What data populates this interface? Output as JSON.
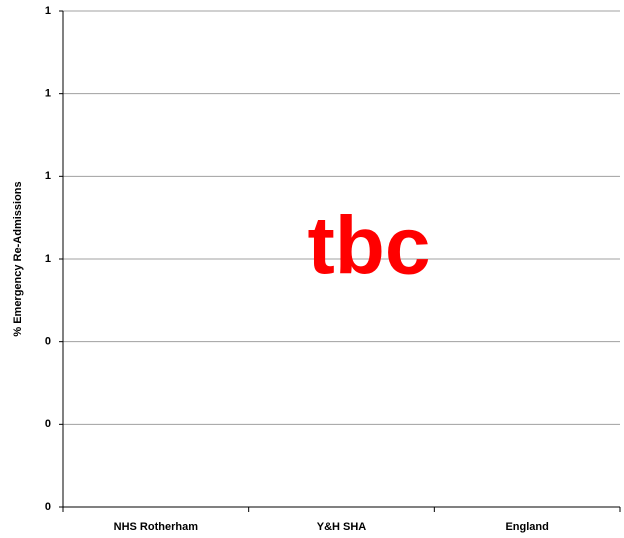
{
  "chart_data": {
    "type": "bar",
    "y_label": "% Emergency Re-Admissions",
    "categories": [
      "NHS Rotherham",
      "Y&H SHA",
      "England"
    ],
    "annotation": "tbc",
    "annotation_color": "#ff0000",
    "ylim": [
      0,
      1.2
    ],
    "yticks": [
      0,
      {
        "value": 0.2,
        "label": "0"
      },
      {
        "value": 0.4,
        "label": "0"
      },
      {
        "value": 0.6,
        "label": "1"
      },
      {
        "value": 0.8,
        "label": "1"
      },
      1,
      {
        "value": 1.2,
        "label": "1"
      }
    ],
    "grid": true
  }
}
